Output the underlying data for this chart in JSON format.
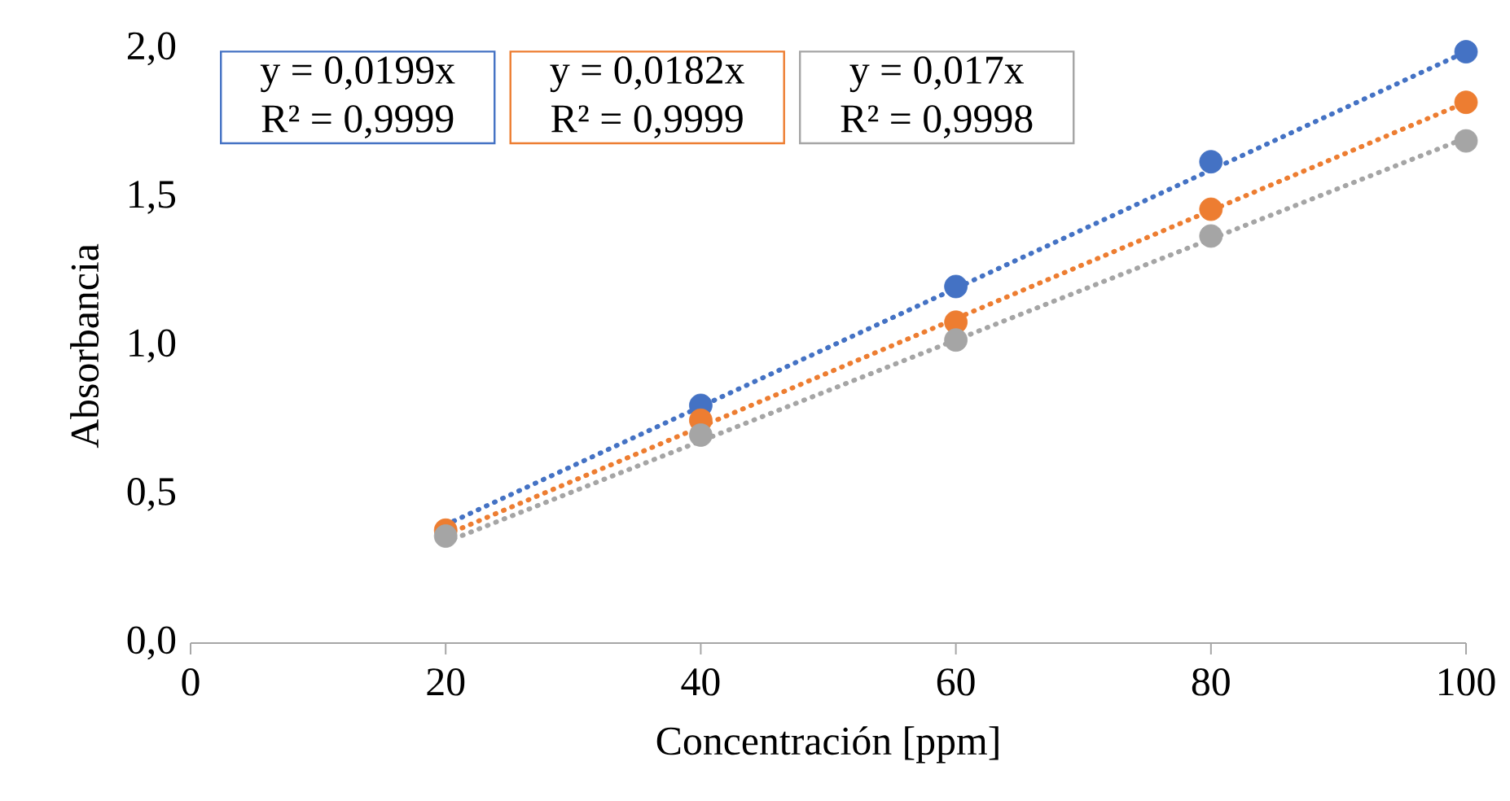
{
  "chart_data": {
    "type": "scatter",
    "xlabel": "Concentración [ppm]",
    "ylabel": "Absorbancia",
    "xlim": [
      0,
      100
    ],
    "ylim": [
      0,
      2
    ],
    "xticks": [
      0,
      20,
      40,
      60,
      80,
      100
    ],
    "yticks": [
      {
        "value": 0,
        "label": "0,0"
      },
      {
        "value": 0.5,
        "label": "0,5"
      },
      {
        "value": 1,
        "label": "1,0"
      },
      {
        "value": 1.5,
        "label": "1,5"
      },
      {
        "value": 2,
        "label": "2,0"
      }
    ],
    "x": [
      20,
      40,
      60,
      80,
      100
    ],
    "series": [
      {
        "marker": "circle",
        "color": "#4472c4",
        "values": [
          null,
          0.8,
          1.2,
          1.62,
          1.99
        ]
      },
      {
        "marker": "circle",
        "color": "#ed7d31",
        "values": [
          0.38,
          0.75,
          1.08,
          1.46,
          1.82
        ]
      },
      {
        "marker": "circle",
        "color": "#a5a5a5",
        "values": [
          0.36,
          0.7,
          1.02,
          1.37,
          1.69
        ]
      },
      {
        "type": "line",
        "line_style": "dotted",
        "marker": "none",
        "color": "#4472c4",
        "values": [
          0.398,
          0.796,
          1.194,
          1.592,
          1.99
        ]
      },
      {
        "type": "line",
        "line_style": "dotted",
        "marker": "none",
        "color": "#ed7d31",
        "values": [
          0.364,
          0.728,
          1.092,
          1.456,
          1.82
        ]
      },
      {
        "type": "line",
        "line_style": "dotted",
        "marker": "none",
        "color": "#a5a5a5",
        "values": [
          0.34,
          0.68,
          1.02,
          1.36,
          1.7
        ]
      }
    ],
    "annotations": [
      "y = 0,0199x",
      "R² = 0,9999",
      "y = 0,0182x",
      "R² = 0,9999",
      "y = 0,017x",
      "R² = 0,9998"
    ]
  }
}
